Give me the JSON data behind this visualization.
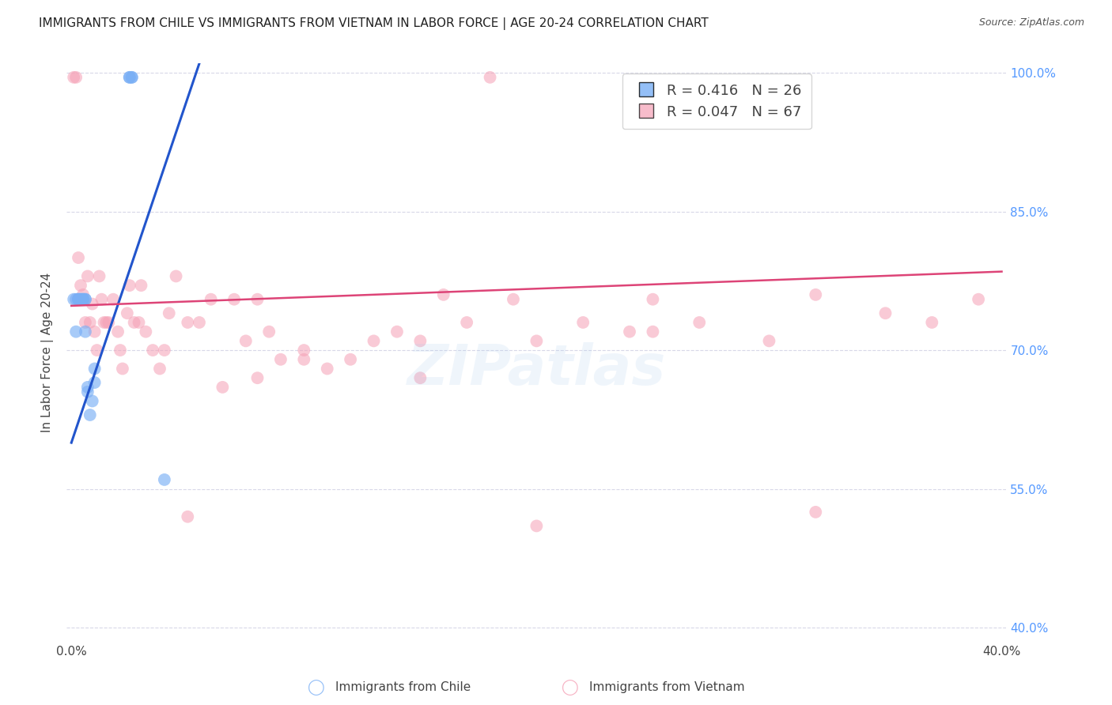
{
  "title": "IMMIGRANTS FROM CHILE VS IMMIGRANTS FROM VIETNAM IN LABOR FORCE | AGE 20-24 CORRELATION CHART",
  "source": "Source: ZipAtlas.com",
  "ylabel_left": "In Labor Force | Age 20-24",
  "legend_chile": "Immigrants from Chile",
  "legend_vietnam": "Immigrants from Vietnam",
  "chile_R": 0.416,
  "chile_N": 26,
  "vietnam_R": 0.047,
  "vietnam_N": 67,
  "chile_color": "#7aaff5",
  "vietnam_color": "#f5a0b5",
  "chile_trend_color": "#2255cc",
  "vietnam_trend_color": "#dd4477",
  "right_axis_color": "#5599ff",
  "background_color": "#ffffff",
  "grid_color": "#d8d8e8",
  "xlim": [
    -0.002,
    0.402
  ],
  "ylim": [
    0.385,
    1.01
  ],
  "yticks_right": [
    1.0,
    0.85,
    0.7,
    0.55,
    0.4
  ],
  "ytick_labels_right": [
    "100.0%",
    "85.0%",
    "70.0%",
    "55.0%",
    "40.0%"
  ],
  "xticks": [
    0.0,
    0.05,
    0.1,
    0.15,
    0.2,
    0.25,
    0.3,
    0.35,
    0.4
  ],
  "xtick_labels": [
    "0.0%",
    "",
    "",
    "",
    "",
    "",
    "",
    "",
    "40.0%"
  ],
  "chile_x": [
    0.001,
    0.002,
    0.002,
    0.003,
    0.003,
    0.003,
    0.004,
    0.004,
    0.004,
    0.005,
    0.005,
    0.005,
    0.006,
    0.006,
    0.006,
    0.007,
    0.007,
    0.008,
    0.009,
    0.01,
    0.01,
    0.025,
    0.025,
    0.026,
    0.026,
    0.04
  ],
  "chile_y": [
    0.755,
    0.755,
    0.72,
    0.755,
    0.755,
    0.755,
    0.755,
    0.755,
    0.755,
    0.755,
    0.755,
    0.755,
    0.755,
    0.72,
    0.755,
    0.66,
    0.655,
    0.63,
    0.645,
    0.68,
    0.665,
    0.995,
    0.995,
    0.995,
    0.995,
    0.56
  ],
  "viet_x": [
    0.001,
    0.002,
    0.003,
    0.004,
    0.005,
    0.006,
    0.007,
    0.008,
    0.009,
    0.01,
    0.011,
    0.012,
    0.013,
    0.014,
    0.015,
    0.016,
    0.018,
    0.02,
    0.021,
    0.022,
    0.024,
    0.025,
    0.027,
    0.029,
    0.03,
    0.032,
    0.035,
    0.038,
    0.04,
    0.042,
    0.045,
    0.05,
    0.055,
    0.06,
    0.065,
    0.07,
    0.075,
    0.08,
    0.085,
    0.09,
    0.1,
    0.11,
    0.12,
    0.13,
    0.14,
    0.15,
    0.16,
    0.17,
    0.18,
    0.19,
    0.2,
    0.22,
    0.24,
    0.25,
    0.27,
    0.3,
    0.32,
    0.35,
    0.37,
    0.39,
    0.2,
    0.32,
    0.1,
    0.15,
    0.25,
    0.08,
    0.05
  ],
  "viet_y": [
    0.995,
    0.995,
    0.8,
    0.77,
    0.76,
    0.73,
    0.78,
    0.73,
    0.75,
    0.72,
    0.7,
    0.78,
    0.755,
    0.73,
    0.73,
    0.73,
    0.755,
    0.72,
    0.7,
    0.68,
    0.74,
    0.77,
    0.73,
    0.73,
    0.77,
    0.72,
    0.7,
    0.68,
    0.7,
    0.74,
    0.78,
    0.73,
    0.73,
    0.755,
    0.66,
    0.755,
    0.71,
    0.755,
    0.72,
    0.69,
    0.7,
    0.68,
    0.69,
    0.71,
    0.72,
    0.71,
    0.76,
    0.73,
    0.995,
    0.755,
    0.71,
    0.73,
    0.72,
    0.755,
    0.73,
    0.71,
    0.76,
    0.74,
    0.73,
    0.755,
    0.51,
    0.525,
    0.69,
    0.67,
    0.72,
    0.67,
    0.52
  ],
  "chile_trend_x0": 0.0,
  "chile_trend_y0": 0.6,
  "chile_trend_x1": 0.055,
  "chile_trend_y1": 1.01,
  "viet_trend_x0": 0.0,
  "viet_trend_y0": 0.748,
  "viet_trend_x1": 0.4,
  "viet_trend_y1": 0.785
}
